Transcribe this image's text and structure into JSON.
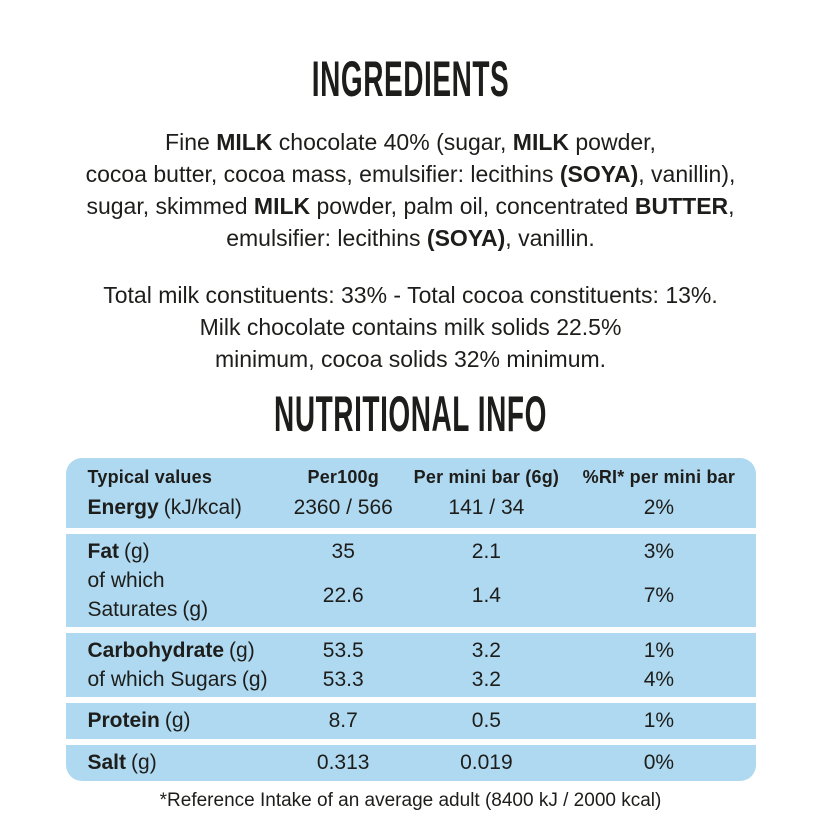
{
  "colors": {
    "page_bg": "#ffffff",
    "text": "#1d1d1b",
    "table_band_bg": "#afd9f0"
  },
  "ingredients": {
    "title": "INGREDIENTS",
    "lines": [
      {
        "segments": [
          {
            "text": "Fine ",
            "bold": false
          },
          {
            "text": "MILK",
            "bold": true
          },
          {
            "text": " chocolate 40% (sugar, ",
            "bold": false
          },
          {
            "text": "MILK",
            "bold": true
          },
          {
            "text": " powder,",
            "bold": false
          }
        ]
      },
      {
        "segments": [
          {
            "text": "cocoa butter, cocoa mass, emulsifier: lecithins ",
            "bold": false
          },
          {
            "text": "(SOYA)",
            "bold": true
          },
          {
            "text": ", vanillin),",
            "bold": false
          }
        ]
      },
      {
        "segments": [
          {
            "text": "sugar, skimmed ",
            "bold": false
          },
          {
            "text": "MILK",
            "bold": true
          },
          {
            "text": " powder, palm oil, concentrated ",
            "bold": false
          },
          {
            "text": "BUTTER",
            "bold": true
          },
          {
            "text": ",",
            "bold": false
          }
        ]
      },
      {
        "segments": [
          {
            "text": "emulsifier: lecithins ",
            "bold": false
          },
          {
            "text": "(SOYA)",
            "bold": true
          },
          {
            "text": ", vanillin.",
            "bold": false
          }
        ]
      }
    ]
  },
  "constituents": {
    "lines": [
      "Total milk constituents: 33% - Total cocoa constituents: 13%.",
      "Milk chocolate contains milk solids 22.5%",
      "minimum, cocoa solids 32% minimum."
    ]
  },
  "nutrition": {
    "title": "NUTRITIONAL INFO",
    "table": {
      "headers": [
        "Typical values",
        "Per100g",
        "Per mini bar (6g)",
        "%RI* per mini bar"
      ],
      "groups": [
        {
          "rows": [
            {
              "name": "Energy",
              "unit": "(kJ/kcal)",
              "per100g": "2360 / 566",
              "per_mini_bar": "141 / 34",
              "ri_percent": "2%"
            }
          ]
        },
        {
          "rows": [
            {
              "name": "Fat",
              "unit": "(g)",
              "per100g": "35",
              "per_mini_bar": "2.1",
              "ri_percent": "3%"
            },
            {
              "name": "of which Saturates",
              "unit": "(g)",
              "per100g": "22.6",
              "per_mini_bar": "1.4",
              "ri_percent": "7%"
            }
          ]
        },
        {
          "rows": [
            {
              "name": "Carbohydrate",
              "unit": "(g)",
              "per100g": "53.5",
              "per_mini_bar": "3.2",
              "ri_percent": "1%"
            },
            {
              "name": "of which Sugars",
              "unit": "(g)",
              "per100g": "53.3",
              "per_mini_bar": "3.2",
              "ri_percent": "4%"
            }
          ]
        },
        {
          "rows": [
            {
              "name": "Protein",
              "unit": "(g)",
              "per100g": "8.7",
              "per_mini_bar": "0.5",
              "ri_percent": "1%"
            }
          ]
        },
        {
          "rows": [
            {
              "name": "Salt",
              "unit": "(g)",
              "per100g": "0.313",
              "per_mini_bar": "0.019",
              "ri_percent": "0%"
            }
          ]
        }
      ]
    },
    "footnote": "*Reference Intake of an average adult (8400 kJ / 2000 kcal)"
  }
}
